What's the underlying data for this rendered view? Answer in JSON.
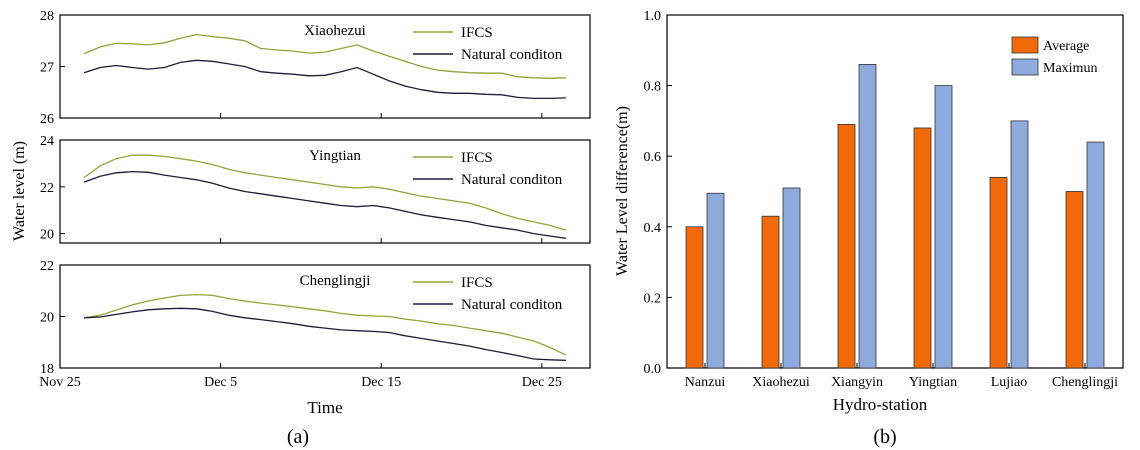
{
  "panel_labels": {
    "a": "(a)",
    "b": "(b)"
  },
  "chart_data": [
    {
      "type": "line",
      "panel": "(a)",
      "xlabel": "Time",
      "ylabel": "Water level (m)",
      "x_ticks": [
        "Nov 25",
        "Dec 5",
        "Dec 15",
        "Dec 25"
      ],
      "x_tick_days": [
        0,
        10,
        20,
        30
      ],
      "legend_placement": "top-right",
      "subplots": [
        {
          "title": "Xiaohezui",
          "ylim": [
            26,
            28
          ],
          "y_ticks": [
            "26",
            "27",
            "28"
          ],
          "x_days": [
            1.5,
            2.5,
            3.5,
            4.5,
            5.5,
            6.5,
            7.5,
            8.5,
            9.5,
            10.5,
            11.5,
            12.5,
            13.5,
            14.5,
            15.5,
            16.5,
            17.5,
            18.5,
            19.5,
            20.5,
            21.5,
            22.5,
            23.5,
            24.5,
            25.5,
            26.5,
            27.5,
            28.5,
            29.5,
            30.5,
            31.5
          ],
          "series": [
            {
              "name": "IFCS",
              "color": "#8fa63a",
              "values": [
                27.25,
                27.38,
                27.45,
                27.44,
                27.42,
                27.46,
                27.55,
                27.62,
                27.58,
                27.55,
                27.5,
                27.35,
                27.32,
                27.3,
                27.26,
                27.28,
                27.35,
                27.42,
                27.3,
                27.2,
                27.1,
                27.0,
                26.93,
                26.9,
                26.88,
                26.87,
                26.87,
                26.8,
                26.78,
                26.77,
                26.78
              ]
            },
            {
              "name": "Natural conditon",
              "color": "#1c1c3c",
              "values": [
                26.88,
                26.98,
                27.02,
                26.98,
                26.95,
                26.98,
                27.08,
                27.12,
                27.1,
                27.05,
                27.0,
                26.9,
                26.87,
                26.85,
                26.82,
                26.83,
                26.9,
                26.98,
                26.85,
                26.72,
                26.62,
                26.55,
                26.5,
                26.48,
                26.48,
                26.46,
                26.45,
                26.4,
                26.38,
                26.38,
                26.39
              ]
            }
          ]
        },
        {
          "title": "Yingtian",
          "ylim": [
            19.6,
            24
          ],
          "y_ticks": [
            "20",
            "22",
            "24"
          ],
          "x_days": [
            1.5,
            2.5,
            3.5,
            4.5,
            5.5,
            6.5,
            7.5,
            8.5,
            9.5,
            10.5,
            11.5,
            12.5,
            13.5,
            14.5,
            15.5,
            16.5,
            17.5,
            18.5,
            19.5,
            20.5,
            21.5,
            22.5,
            23.5,
            24.5,
            25.5,
            26.5,
            27.5,
            28.5,
            29.5,
            30.5,
            31.5
          ],
          "series": [
            {
              "name": "IFCS",
              "color": "#8fa63a",
              "values": [
                22.4,
                22.9,
                23.2,
                23.35,
                23.35,
                23.3,
                23.2,
                23.1,
                22.95,
                22.75,
                22.6,
                22.5,
                22.4,
                22.3,
                22.2,
                22.1,
                22.0,
                21.95,
                22.0,
                21.9,
                21.75,
                21.6,
                21.5,
                21.4,
                21.3,
                21.1,
                20.85,
                20.65,
                20.5,
                20.35,
                20.15
              ]
            },
            {
              "name": "Natural conditon",
              "color": "#1c1c3c",
              "values": [
                22.2,
                22.45,
                22.6,
                22.65,
                22.62,
                22.5,
                22.4,
                22.3,
                22.15,
                21.95,
                21.8,
                21.7,
                21.6,
                21.5,
                21.4,
                21.3,
                21.2,
                21.15,
                21.2,
                21.1,
                20.95,
                20.8,
                20.7,
                20.6,
                20.5,
                20.35,
                20.25,
                20.15,
                20.0,
                19.9,
                19.8
              ]
            }
          ]
        },
        {
          "title": "Chenglingji",
          "ylim": [
            18,
            22
          ],
          "y_ticks": [
            "18",
            "20",
            "22"
          ],
          "x_days": [
            1.5,
            2.5,
            3.5,
            4.5,
            5.5,
            6.5,
            7.5,
            8.5,
            9.5,
            10.5,
            11.5,
            12.5,
            13.5,
            14.5,
            15.5,
            16.5,
            17.5,
            18.5,
            19.5,
            20.5,
            21.5,
            22.5,
            23.5,
            24.5,
            25.5,
            26.5,
            27.5,
            28.5,
            29.5,
            30.5,
            31.5
          ],
          "series": [
            {
              "name": "IFCS",
              "color": "#8fa63a",
              "values": [
                19.95,
                20.05,
                20.25,
                20.45,
                20.6,
                20.72,
                20.82,
                20.85,
                20.82,
                20.7,
                20.6,
                20.52,
                20.45,
                20.38,
                20.3,
                20.22,
                20.12,
                20.05,
                20.02,
                20.0,
                19.9,
                19.82,
                19.72,
                19.65,
                19.55,
                19.45,
                19.35,
                19.2,
                19.05,
                18.8,
                18.5
              ]
            },
            {
              "name": "Natural conditon",
              "color": "#1c1c3c",
              "values": [
                19.95,
                19.98,
                20.08,
                20.18,
                20.26,
                20.3,
                20.32,
                20.3,
                20.2,
                20.05,
                19.95,
                19.88,
                19.8,
                19.72,
                19.62,
                19.55,
                19.48,
                19.45,
                19.42,
                19.38,
                19.25,
                19.15,
                19.05,
                18.95,
                18.85,
                18.72,
                18.6,
                18.48,
                18.35,
                18.32,
                18.3
              ]
            }
          ]
        }
      ]
    },
    {
      "type": "bar",
      "panel": "(b)",
      "xlabel": "Hydro-station",
      "ylabel": "Water Level difference(m)",
      "ylim": [
        0,
        1.0
      ],
      "y_ticks": [
        "0.0",
        "0.2",
        "0.4",
        "0.6",
        "0.8",
        "1.0"
      ],
      "categories": [
        "Nanzui",
        "Xiaohezui",
        "Xiangyin",
        "Yingtian",
        "Lujiao",
        "Chenglingji"
      ],
      "legend_placement": "top-right",
      "series": [
        {
          "name": "Average",
          "color": "#f06a0a",
          "values": [
            0.4,
            0.43,
            0.69,
            0.68,
            0.54,
            0.5
          ]
        },
        {
          "name": "Maximun",
          "color": "#8faadc",
          "values": [
            0.495,
            0.51,
            0.86,
            0.8,
            0.7,
            0.64
          ]
        }
      ]
    }
  ]
}
